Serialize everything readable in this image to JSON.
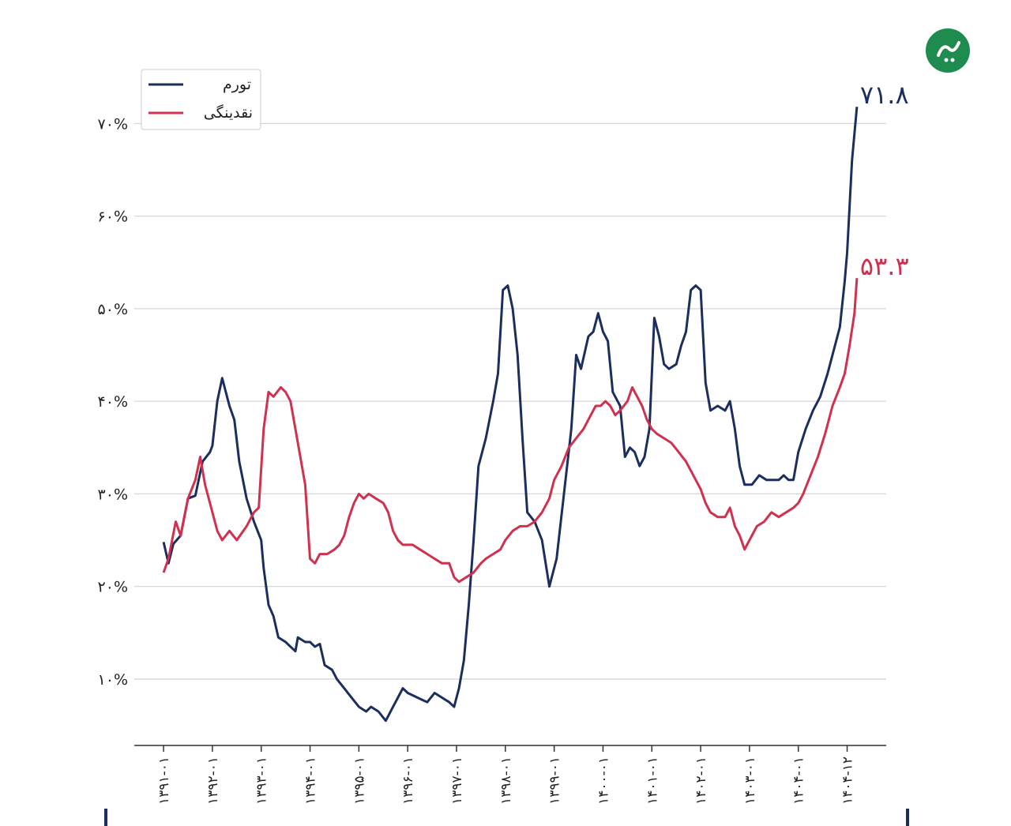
{
  "chart_data": {
    "type": "line",
    "title": "",
    "xlabel": "",
    "ylabel": "",
    "ylim": [
      3,
      76
    ],
    "grid": true,
    "legend_position": "top-left",
    "y_ticks": [
      {
        "value": 10,
        "label": "۱۰%"
      },
      {
        "value": 20,
        "label": "۲۰%"
      },
      {
        "value": 30,
        "label": "۳۰%"
      },
      {
        "value": 40,
        "label": "۴۰%"
      },
      {
        "value": 50,
        "label": "۵۰%"
      },
      {
        "value": 60,
        "label": "۶۰%"
      },
      {
        "value": 70,
        "label": "۷۰%"
      }
    ],
    "x_ticks": [
      {
        "value": 1391,
        "label": "۱۳۹۱-۰۱"
      },
      {
        "value": 1392,
        "label": "۱۳۹۲-۰۱"
      },
      {
        "value": 1393,
        "label": "۱۳۹۳-۰۱"
      },
      {
        "value": 1394,
        "label": "۱۳۹۴-۰۱"
      },
      {
        "value": 1395,
        "label": "۱۳۹۵-۰۱"
      },
      {
        "value": 1396,
        "label": "۱۳۹۶-۰۱"
      },
      {
        "value": 1397,
        "label": "۱۳۹۷-۰۱"
      },
      {
        "value": 1398,
        "label": "۱۳۹۸-۰۱"
      },
      {
        "value": 1399,
        "label": "۱۳۹۹-۰۱"
      },
      {
        "value": 1400,
        "label": "۱۴۰۰-۰۱"
      },
      {
        "value": 1401,
        "label": "۱۴۰۱-۰۱"
      },
      {
        "value": 1402,
        "label": "۱۴۰۲-۰۱"
      },
      {
        "value": 1403,
        "label": "۱۴۰۳-۰۱"
      },
      {
        "value": 1404,
        "label": "۱۴۰۴-۰۱"
      },
      {
        "value": 1405,
        "label": "۱۴۰۴-۱۲"
      }
    ],
    "xlim": [
      1390.4,
      1405.8
    ],
    "series": [
      {
        "name": "تورم",
        "color": "#1c2e5e",
        "end_label": "۷۱.۸",
        "points": [
          [
            1391.0,
            24.8
          ],
          [
            1391.1,
            22.5
          ],
          [
            1391.2,
            24.6
          ],
          [
            1391.35,
            25.5
          ],
          [
            1391.5,
            29.5
          ],
          [
            1391.65,
            29.8
          ],
          [
            1391.8,
            33.5
          ],
          [
            1391.95,
            34.5
          ],
          [
            1392.0,
            35.2
          ],
          [
            1392.1,
            40.0
          ],
          [
            1392.2,
            42.5
          ],
          [
            1392.35,
            39.5
          ],
          [
            1392.45,
            38.0
          ],
          [
            1392.55,
            33.5
          ],
          [
            1392.7,
            29.5
          ],
          [
            1392.85,
            27.0
          ],
          [
            1393.0,
            25.0
          ],
          [
            1393.05,
            22.0
          ],
          [
            1393.15,
            18.0
          ],
          [
            1393.25,
            16.8
          ],
          [
            1393.35,
            14.5
          ],
          [
            1393.5,
            14.0
          ],
          [
            1393.6,
            13.5
          ],
          [
            1393.7,
            13.0
          ],
          [
            1393.75,
            14.5
          ],
          [
            1393.9,
            14.0
          ],
          [
            1394.0,
            14.0
          ],
          [
            1394.1,
            13.5
          ],
          [
            1394.2,
            13.8
          ],
          [
            1394.3,
            11.5
          ],
          [
            1394.45,
            11.0
          ],
          [
            1394.55,
            10.0
          ],
          [
            1394.7,
            9.0
          ],
          [
            1394.85,
            8.0
          ],
          [
            1395.0,
            7.0
          ],
          [
            1395.15,
            6.5
          ],
          [
            1395.25,
            7.0
          ],
          [
            1395.4,
            6.5
          ],
          [
            1395.55,
            5.5
          ],
          [
            1395.7,
            7.0
          ],
          [
            1395.9,
            9.0
          ],
          [
            1396.0,
            8.5
          ],
          [
            1396.2,
            8.0
          ],
          [
            1396.4,
            7.5
          ],
          [
            1396.55,
            8.5
          ],
          [
            1396.7,
            8.0
          ],
          [
            1396.85,
            7.5
          ],
          [
            1396.95,
            7.0
          ],
          [
            1397.05,
            9.0
          ],
          [
            1397.15,
            12.0
          ],
          [
            1397.25,
            18.0
          ],
          [
            1397.35,
            25.0
          ],
          [
            1397.45,
            33.0
          ],
          [
            1397.6,
            36.0
          ],
          [
            1397.75,
            40.0
          ],
          [
            1397.85,
            43.0
          ],
          [
            1397.95,
            52.0
          ],
          [
            1398.05,
            52.5
          ],
          [
            1398.15,
            50.0
          ],
          [
            1398.25,
            45.0
          ],
          [
            1398.35,
            36.0
          ],
          [
            1398.45,
            28.0
          ],
          [
            1398.6,
            27.0
          ],
          [
            1398.75,
            25.0
          ],
          [
            1398.9,
            20.0
          ],
          [
            1399.05,
            23.0
          ],
          [
            1399.2,
            30.0
          ],
          [
            1399.35,
            37.0
          ],
          [
            1399.45,
            45.0
          ],
          [
            1399.55,
            43.5
          ],
          [
            1399.7,
            47.0
          ],
          [
            1399.8,
            47.5
          ],
          [
            1399.9,
            49.5
          ],
          [
            1400.0,
            47.5
          ],
          [
            1400.1,
            46.5
          ],
          [
            1400.2,
            41.0
          ],
          [
            1400.35,
            39.5
          ],
          [
            1400.45,
            34.0
          ],
          [
            1400.55,
            35.0
          ],
          [
            1400.65,
            34.5
          ],
          [
            1400.75,
            33.0
          ],
          [
            1400.85,
            34.0
          ],
          [
            1400.95,
            37.0
          ],
          [
            1401.05,
            49.0
          ],
          [
            1401.15,
            47.0
          ],
          [
            1401.25,
            44.0
          ],
          [
            1401.35,
            43.5
          ],
          [
            1401.5,
            44.0
          ],
          [
            1401.6,
            46.0
          ],
          [
            1401.7,
            47.5
          ],
          [
            1401.8,
            52.0
          ],
          [
            1401.9,
            52.5
          ],
          [
            1402.0,
            52.0
          ],
          [
            1402.1,
            42.0
          ],
          [
            1402.2,
            39.0
          ],
          [
            1402.35,
            39.5
          ],
          [
            1402.5,
            39.0
          ],
          [
            1402.6,
            40.0
          ],
          [
            1402.7,
            37.0
          ],
          [
            1402.8,
            33.0
          ],
          [
            1402.9,
            31.0
          ],
          [
            1403.05,
            31.0
          ],
          [
            1403.2,
            32.0
          ],
          [
            1403.35,
            31.5
          ],
          [
            1403.5,
            31.5
          ],
          [
            1403.6,
            31.5
          ],
          [
            1403.7,
            32.0
          ],
          [
            1403.8,
            31.5
          ],
          [
            1403.9,
            31.5
          ],
          [
            1404.0,
            34.5
          ],
          [
            1404.15,
            37.0
          ],
          [
            1404.3,
            39.0
          ],
          [
            1404.45,
            40.5
          ],
          [
            1404.6,
            43.0
          ],
          [
            1404.75,
            46.0
          ],
          [
            1404.85,
            48.0
          ],
          [
            1404.95,
            53.0
          ],
          [
            1405.0,
            56.0
          ],
          [
            1405.1,
            66.0
          ],
          [
            1405.2,
            71.8
          ]
        ]
      },
      {
        "name": "نقدینگی",
        "color": "#d1304f",
        "end_label": "۵۳.۳",
        "points": [
          [
            1391.0,
            21.5
          ],
          [
            1391.1,
            23.0
          ],
          [
            1391.25,
            27.0
          ],
          [
            1391.35,
            25.5
          ],
          [
            1391.5,
            29.5
          ],
          [
            1391.65,
            31.5
          ],
          [
            1391.75,
            34.0
          ],
          [
            1391.85,
            31.0
          ],
          [
            1392.0,
            28.0
          ],
          [
            1392.1,
            26.0
          ],
          [
            1392.2,
            25.0
          ],
          [
            1392.35,
            26.0
          ],
          [
            1392.5,
            25.0
          ],
          [
            1392.7,
            26.5
          ],
          [
            1392.85,
            28.0
          ],
          [
            1392.95,
            28.5
          ],
          [
            1393.05,
            37.0
          ],
          [
            1393.15,
            41.0
          ],
          [
            1393.25,
            40.5
          ],
          [
            1393.4,
            41.5
          ],
          [
            1393.5,
            41.0
          ],
          [
            1393.6,
            40.0
          ],
          [
            1393.7,
            37.0
          ],
          [
            1393.8,
            34.0
          ],
          [
            1393.9,
            31.0
          ],
          [
            1394.0,
            23.0
          ],
          [
            1394.1,
            22.5
          ],
          [
            1394.2,
            23.5
          ],
          [
            1394.35,
            23.5
          ],
          [
            1394.5,
            24.0
          ],
          [
            1394.6,
            24.5
          ],
          [
            1394.7,
            25.5
          ],
          [
            1394.8,
            27.5
          ],
          [
            1394.9,
            29.0
          ],
          [
            1395.0,
            30.0
          ],
          [
            1395.1,
            29.5
          ],
          [
            1395.2,
            30.0
          ],
          [
            1395.35,
            29.5
          ],
          [
            1395.5,
            29.0
          ],
          [
            1395.6,
            28.0
          ],
          [
            1395.7,
            26.0
          ],
          [
            1395.8,
            25.0
          ],
          [
            1395.9,
            24.5
          ],
          [
            1396.0,
            24.5
          ],
          [
            1396.1,
            24.5
          ],
          [
            1396.25,
            24.0
          ],
          [
            1396.4,
            23.5
          ],
          [
            1396.55,
            23.0
          ],
          [
            1396.7,
            22.5
          ],
          [
            1396.85,
            22.5
          ],
          [
            1396.95,
            21.0
          ],
          [
            1397.05,
            20.5
          ],
          [
            1397.2,
            21.0
          ],
          [
            1397.35,
            21.5
          ],
          [
            1397.5,
            22.5
          ],
          [
            1397.6,
            23.0
          ],
          [
            1397.75,
            23.5
          ],
          [
            1397.9,
            24.0
          ],
          [
            1398.0,
            25.0
          ],
          [
            1398.15,
            26.0
          ],
          [
            1398.3,
            26.5
          ],
          [
            1398.45,
            26.5
          ],
          [
            1398.6,
            27.0
          ],
          [
            1398.75,
            28.0
          ],
          [
            1398.9,
            29.5
          ],
          [
            1399.0,
            31.5
          ],
          [
            1399.15,
            33.0
          ],
          [
            1399.3,
            35.0
          ],
          [
            1399.45,
            36.0
          ],
          [
            1399.6,
            37.0
          ],
          [
            1399.75,
            38.5
          ],
          [
            1399.85,
            39.5
          ],
          [
            1399.95,
            39.5
          ],
          [
            1400.05,
            40.0
          ],
          [
            1400.15,
            39.5
          ],
          [
            1400.25,
            38.5
          ],
          [
            1400.35,
            39.0
          ],
          [
            1400.5,
            40.0
          ],
          [
            1400.6,
            41.5
          ],
          [
            1400.7,
            40.5
          ],
          [
            1400.8,
            39.5
          ],
          [
            1400.9,
            38.0
          ],
          [
            1401.0,
            37.0
          ],
          [
            1401.1,
            36.5
          ],
          [
            1401.25,
            36.0
          ],
          [
            1401.4,
            35.5
          ],
          [
            1401.55,
            34.5
          ],
          [
            1401.7,
            33.5
          ],
          [
            1401.8,
            32.5
          ],
          [
            1401.9,
            31.5
          ],
          [
            1402.0,
            30.5
          ],
          [
            1402.1,
            29.0
          ],
          [
            1402.2,
            28.0
          ],
          [
            1402.35,
            27.5
          ],
          [
            1402.5,
            27.5
          ],
          [
            1402.6,
            28.5
          ],
          [
            1402.7,
            26.5
          ],
          [
            1402.8,
            25.5
          ],
          [
            1402.9,
            24.0
          ],
          [
            1403.0,
            25.0
          ],
          [
            1403.15,
            26.5
          ],
          [
            1403.3,
            27.0
          ],
          [
            1403.45,
            28.0
          ],
          [
            1403.6,
            27.5
          ],
          [
            1403.75,
            28.0
          ],
          [
            1403.9,
            28.5
          ],
          [
            1404.0,
            29.0
          ],
          [
            1404.1,
            30.0
          ],
          [
            1404.25,
            32.0
          ],
          [
            1404.4,
            34.0
          ],
          [
            1404.55,
            36.5
          ],
          [
            1404.7,
            39.5
          ],
          [
            1404.85,
            41.5
          ],
          [
            1404.95,
            43.0
          ],
          [
            1405.05,
            46.0
          ],
          [
            1405.15,
            49.5
          ],
          [
            1405.2,
            53.3
          ]
        ]
      }
    ]
  }
}
